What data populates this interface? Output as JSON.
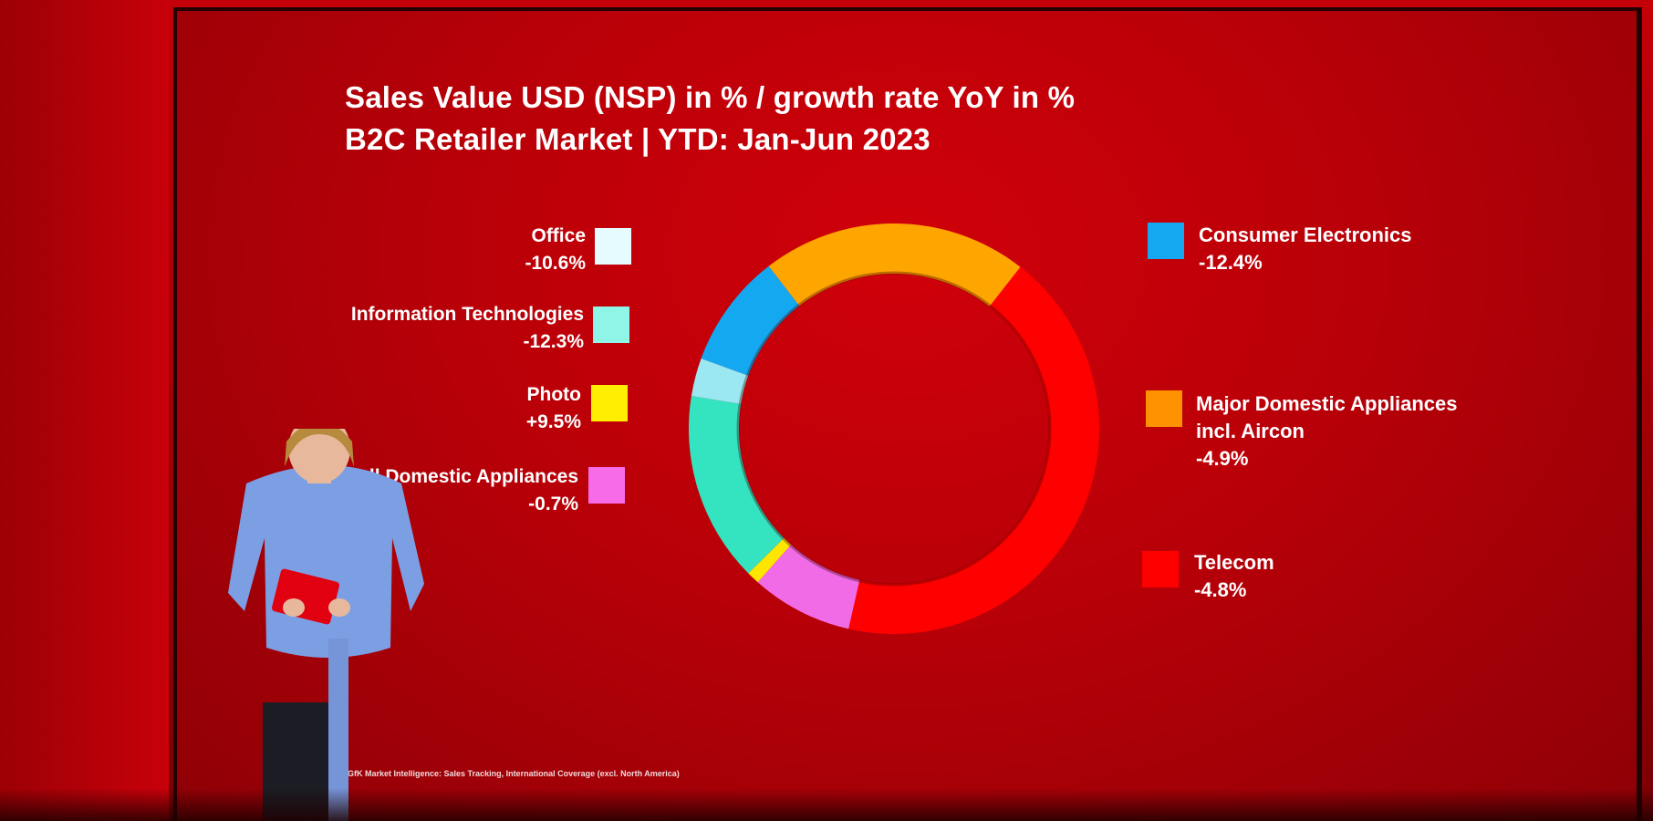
{
  "slide": {
    "title_line1": "Sales Value USD (NSP) in % / growth rate YoY in %",
    "title_line2": "B2C Retailer Market | YTD: Jan-Jun 2023",
    "source": "Source: GfK Market Intelligence: Sales Tracking, International Coverage (excl. North America)"
  },
  "chart_data": {
    "type": "pie",
    "variant": "donut",
    "title": "Sales Value USD (NSP) in % / growth rate YoY in %",
    "subtitle": "B2C Retailer Market | YTD: Jan-Jun 2023",
    "slices": [
      {
        "name": "Consumer Electronics",
        "growth": "-12.4%",
        "share": 9,
        "color": "#14a8f0"
      },
      {
        "name": "Major Domestic Appliances incl. Aircon",
        "growth": "-4.9%",
        "share": 21,
        "color": "#ffa500"
      },
      {
        "name": "Telecom",
        "growth": "-4.8%",
        "share": 43,
        "color": "#ff0000"
      },
      {
        "name": "Small Domestic Appliances",
        "growth": "-0.7%",
        "share": 8,
        "color": "#f26be6"
      },
      {
        "name": "Photo",
        "growth": "+9.5%",
        "share": 1,
        "color": "#ffe600"
      },
      {
        "name": "Information Technologies",
        "growth": "-12.3%",
        "share": 15,
        "color": "#34e3c0"
      },
      {
        "name": "Office",
        "growth": "-10.6%",
        "share": 3,
        "color": "#9be7f2"
      }
    ],
    "legend": {
      "left": [
        {
          "name": "Office",
          "growth": "-10.6%",
          "color": "#e6fbff"
        },
        {
          "name": "Information Technologies",
          "growth": "-12.3%",
          "color": "#8ff5e6"
        },
        {
          "name": "Photo",
          "growth": "+9.5%",
          "color": "#ffee00"
        },
        {
          "name": "Small Domestic Appliances",
          "growth": "-0.7%",
          "color": "#f76be8"
        }
      ],
      "right": [
        {
          "name": "Consumer Electronics",
          "growth": "-12.4%",
          "color": "#14a8f0"
        },
        {
          "name_line1": "Major Domestic Appliances",
          "name_line2": "incl. Aircon",
          "growth": "-4.9%",
          "color": "#ff9200"
        },
        {
          "name": "Telecom",
          "growth": "-4.8%",
          "color": "#ff0000"
        }
      ]
    }
  }
}
